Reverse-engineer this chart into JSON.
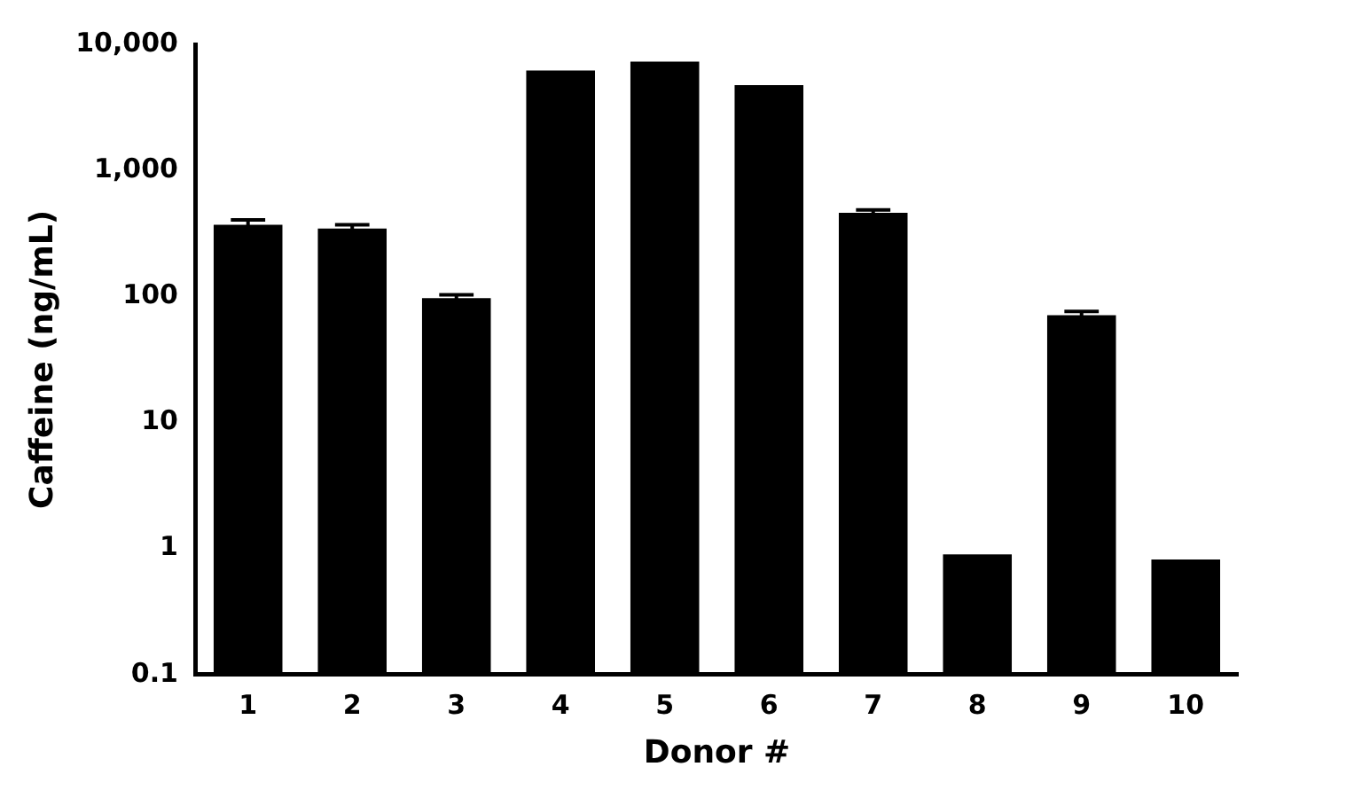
{
  "chart_data": {
    "type": "bar",
    "xlabel": "Donor #",
    "ylabel": "Caffeine (ng/mL)",
    "categories": [
      "1",
      "2",
      "3",
      "4",
      "5",
      "6",
      "7",
      "8",
      "9",
      "10"
    ],
    "values": [
      370,
      345,
      97,
      6200,
      7300,
      4750,
      460,
      0.9,
      71,
      0.82
    ],
    "errors": [
      35,
      25,
      6,
      null,
      null,
      null,
      25,
      null,
      5,
      null
    ],
    "color": "#000000",
    "log": "y",
    "ylim": [
      0.1,
      10000
    ],
    "yticks": [
      {
        "value": 10000,
        "label": "10,000"
      },
      {
        "value": 1000,
        "label": "1,000"
      },
      100,
      10,
      1,
      0.1
    ],
    "grid": false,
    "legend": false
  }
}
